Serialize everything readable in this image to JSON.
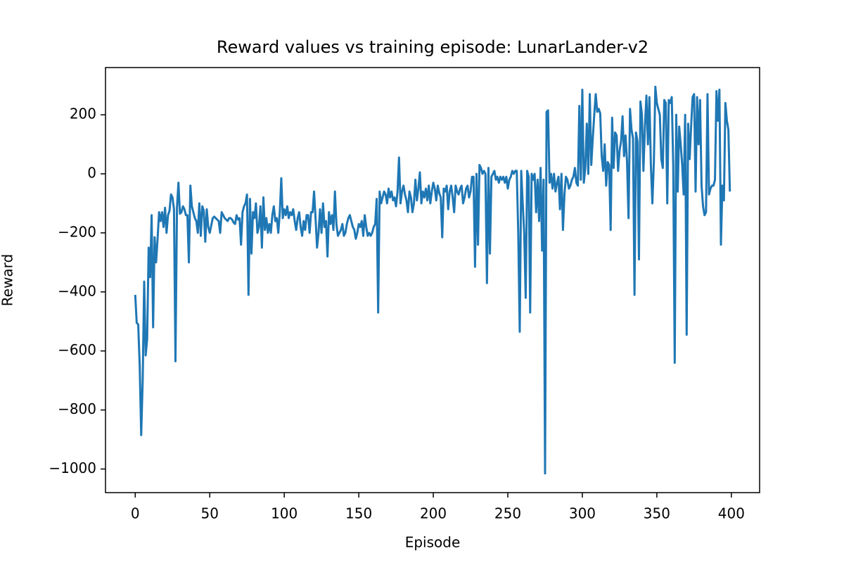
{
  "chart_data": {
    "type": "line",
    "title": "Reward values vs training episode: LunarLander-v2",
    "xlabel": "Episode",
    "ylabel": "Reward",
    "color": "#1f77b4",
    "xlim": [
      -19.95,
      418.95
    ],
    "ylim": [
      -1080,
      360
    ],
    "xticks": [
      0,
      50,
      100,
      150,
      200,
      250,
      300,
      350,
      400
    ],
    "yticks": [
      {
        "value": -1000,
        "label": "−1000"
      },
      {
        "value": -800,
        "label": "−800"
      },
      {
        "value": -600,
        "label": "−600"
      },
      {
        "value": -400,
        "label": "−400"
      },
      {
        "value": -200,
        "label": "−200"
      },
      0,
      200
    ],
    "x": [
      0,
      1,
      2,
      3,
      4,
      5,
      6,
      7,
      8,
      9,
      10,
      11,
      12,
      13,
      14,
      15,
      16,
      17,
      18,
      19,
      20,
      21,
      22,
      23,
      24,
      25,
      26,
      27,
      28,
      29,
      30,
      31,
      32,
      33,
      34,
      35,
      36,
      37,
      38,
      39,
      40,
      41,
      42,
      43,
      44,
      45,
      46,
      47,
      48,
      49,
      50,
      51,
      52,
      53,
      54,
      55,
      56,
      57,
      58,
      59,
      60,
      61,
      62,
      63,
      64,
      65,
      66,
      67,
      68,
      69,
      70,
      71,
      72,
      73,
      74,
      75,
      76,
      77,
      78,
      79,
      80,
      81,
      82,
      83,
      84,
      85,
      86,
      87,
      88,
      89,
      90,
      91,
      92,
      93,
      94,
      95,
      96,
      97,
      98,
      99,
      100,
      101,
      102,
      103,
      104,
      105,
      106,
      107,
      108,
      109,
      110,
      111,
      112,
      113,
      114,
      115,
      116,
      117,
      118,
      119,
      120,
      121,
      122,
      123,
      124,
      125,
      126,
      127,
      128,
      129,
      130,
      131,
      132,
      133,
      134,
      135,
      136,
      137,
      138,
      139,
      140,
      141,
      142,
      143,
      144,
      145,
      146,
      147,
      148,
      149,
      150,
      151,
      152,
      153,
      154,
      155,
      156,
      157,
      158,
      159,
      160,
      161,
      162,
      163,
      164,
      165,
      166,
      167,
      168,
      169,
      170,
      171,
      172,
      173,
      174,
      175,
      176,
      177,
      178,
      179,
      180,
      181,
      182,
      183,
      184,
      185,
      186,
      187,
      188,
      189,
      190,
      191,
      192,
      193,
      194,
      195,
      196,
      197,
      198,
      199,
      200,
      201,
      202,
      203,
      204,
      205,
      206,
      207,
      208,
      209,
      210,
      211,
      212,
      213,
      214,
      215,
      216,
      217,
      218,
      219,
      220,
      221,
      222,
      223,
      224,
      225,
      226,
      227,
      228,
      229,
      230,
      231,
      232,
      233,
      234,
      235,
      236,
      237,
      238,
      239,
      240,
      241,
      242,
      243,
      244,
      245,
      246,
      247,
      248,
      249,
      250,
      251,
      252,
      253,
      254,
      255,
      256,
      257,
      258,
      259,
      260,
      261,
      262,
      263,
      264,
      265,
      266,
      267,
      268,
      269,
      270,
      271,
      272,
      273,
      274,
      275,
      276,
      277,
      278,
      279,
      280,
      281,
      282,
      283,
      284,
      285,
      286,
      287,
      288,
      289,
      290,
      291,
      292,
      293,
      294,
      295,
      296,
      297,
      298,
      299,
      300,
      301,
      302,
      303,
      304,
      305,
      306,
      307,
      308,
      309,
      310,
      311,
      312,
      313,
      314,
      315,
      316,
      317,
      318,
      319,
      320,
      321,
      322,
      323,
      324,
      325,
      326,
      327,
      328,
      329,
      330,
      331,
      332,
      333,
      334,
      335,
      336,
      337,
      338,
      339,
      340,
      341,
      342,
      343,
      344,
      345,
      346,
      347,
      348,
      349,
      350,
      351,
      352,
      353,
      354,
      355,
      356,
      357,
      358,
      359,
      360,
      361,
      362,
      363,
      364,
      365,
      366,
      367,
      368,
      369,
      370,
      371,
      372,
      373,
      374,
      375,
      376,
      377,
      378,
      379,
      380,
      381,
      382,
      383,
      384,
      385,
      386,
      387,
      388,
      389,
      390,
      391,
      392,
      393,
      394,
      395,
      396,
      397,
      398,
      399
    ],
    "values": [
      -410,
      -505,
      -510,
      -650,
      -885,
      -700,
      -365,
      -615,
      -560,
      -250,
      -350,
      -140,
      -520,
      -215,
      -300,
      -220,
      -130,
      -160,
      -130,
      -180,
      -115,
      -200,
      -140,
      -125,
      -70,
      -80,
      -120,
      -635,
      -115,
      -30,
      -135,
      -130,
      -110,
      -120,
      -140,
      -140,
      -300,
      -40,
      -110,
      -130,
      -150,
      -160,
      -200,
      -100,
      -210,
      -110,
      -125,
      -230,
      -120,
      -180,
      -200,
      -175,
      -150,
      -145,
      -150,
      -155,
      -160,
      -200,
      -130,
      -140,
      -150,
      -155,
      -160,
      -150,
      -150,
      -155,
      -165,
      -170,
      -140,
      -155,
      -150,
      -240,
      -130,
      -110,
      -100,
      -70,
      -410,
      -85,
      -270,
      -130,
      -150,
      -100,
      -200,
      -180,
      -110,
      -250,
      -80,
      -190,
      -150,
      -200,
      -170,
      -200,
      -140,
      -110,
      -160,
      -150,
      -200,
      -130,
      -15,
      -150,
      -120,
      -140,
      -110,
      -150,
      -130,
      -140,
      -120,
      -160,
      -190,
      -150,
      -130,
      -180,
      -210,
      -160,
      -190,
      -140,
      -140,
      -200,
      -130,
      -130,
      -60,
      -150,
      -250,
      -200,
      -120,
      -200,
      -100,
      -180,
      -160,
      -280,
      -130,
      -170,
      -140,
      -190,
      -60,
      -170,
      -210,
      -200,
      -190,
      -170,
      -210,
      -200,
      -170,
      -150,
      -140,
      -160,
      -180,
      -190,
      -220,
      -200,
      -170,
      -180,
      -160,
      -210,
      -140,
      -180,
      -210,
      -200,
      -210,
      -200,
      -180,
      -170,
      -85,
      -470,
      -60,
      -100,
      -80,
      -60,
      -70,
      -100,
      -50,
      -80,
      -60,
      -90,
      -80,
      -110,
      -60,
      55,
      -100,
      -60,
      -40,
      -70,
      -90,
      -130,
      -60,
      -80,
      -130,
      -100,
      -20,
      -90,
      -50,
      5,
      -100,
      -60,
      -80,
      -50,
      -90,
      -40,
      -100,
      -60,
      -30,
      -50,
      -90,
      -40,
      -65,
      -80,
      -215,
      -50,
      -60,
      -40,
      -120,
      -60,
      -40,
      -80,
      -130,
      -40,
      -60,
      -70,
      -50,
      -40,
      -100,
      -80,
      -50,
      -40,
      -80,
      -60,
      -10,
      -10,
      -315,
      0,
      -240,
      30,
      20,
      0,
      10,
      0,
      -370,
      20,
      -270,
      -10,
      0,
      10,
      -20,
      -10,
      -30,
      -10,
      -20,
      -10,
      -30,
      -10,
      -50,
      -20,
      -10,
      10,
      0,
      10,
      10,
      -200,
      -535,
      10,
      -100,
      -200,
      -420,
      10,
      -10,
      -470,
      0,
      -20,
      0,
      -130,
      -20,
      -160,
      20,
      -260,
      -20,
      -1015,
      210,
      215,
      -30,
      0,
      -50,
      0,
      -60,
      -30,
      -10,
      -120,
      0,
      -190,
      -70,
      -10,
      -20,
      -50,
      -40,
      -20,
      -10,
      20,
      -30,
      -40,
      230,
      -20,
      285,
      -30,
      20,
      170,
      0,
      270,
      30,
      120,
      200,
      270,
      210,
      220,
      205,
      60,
      10,
      100,
      -40,
      40,
      30,
      -190,
      190,
      20,
      140,
      130,
      10,
      80,
      110,
      195,
      60,
      130,
      40,
      -150,
      220,
      150,
      120,
      -410,
      140,
      110,
      -290,
      245,
      200,
      10,
      160,
      265,
      100,
      260,
      30,
      -100,
      40,
      295,
      240,
      220,
      200,
      50,
      20,
      250,
      240,
      -100,
      250,
      240,
      260,
      30,
      -640,
      200,
      -60,
      160,
      100,
      30,
      -70,
      200,
      -545,
      170,
      50,
      160,
      260,
      270,
      -60,
      260,
      100,
      250,
      -40,
      -110,
      -140,
      -130,
      270,
      -70,
      -50,
      -40,
      -40,
      -20,
      280,
      180,
      285,
      -240,
      -40,
      -90,
      240,
      180,
      150,
      -60
    ]
  }
}
